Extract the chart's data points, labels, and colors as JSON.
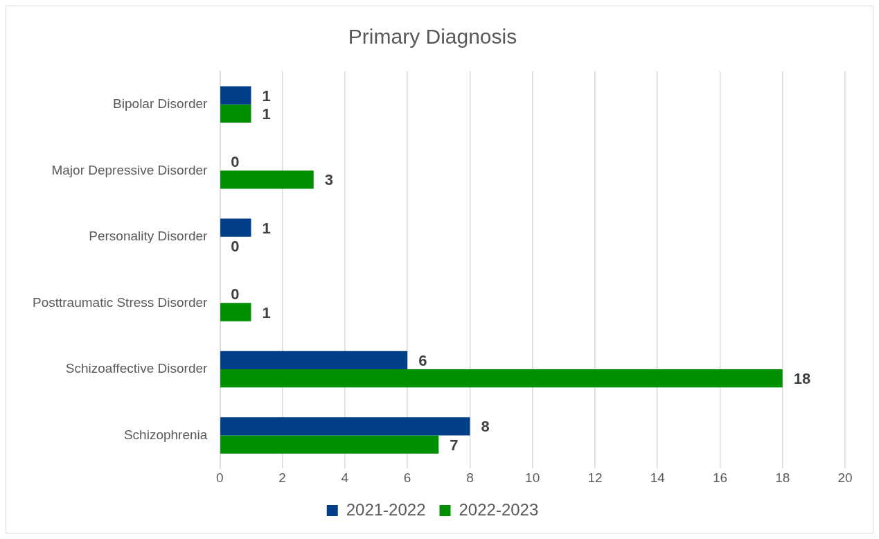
{
  "chart_data": {
    "type": "bar",
    "orientation": "horizontal",
    "title": "Primary Diagnosis",
    "categories": [
      "Bipolar Disorder",
      "Major Depressive Disorder",
      "Personality Disorder",
      "Posttraumatic Stress Disorder",
      "Schizoaffective Disorder",
      "Schizophrenia"
    ],
    "series": [
      {
        "name": "2021-2022",
        "color": "#003f87",
        "values": [
          1,
          0,
          1,
          0,
          6,
          8
        ]
      },
      {
        "name": "2022-2023",
        "color": "#008f00",
        "values": [
          1,
          3,
          0,
          1,
          18,
          7
        ]
      }
    ],
    "xlim": [
      0,
      20
    ],
    "xticks": [
      0,
      2,
      4,
      6,
      8,
      10,
      12,
      14,
      16,
      18,
      20
    ],
    "grid": "x",
    "legend": "bottom",
    "data_labels": true
  }
}
